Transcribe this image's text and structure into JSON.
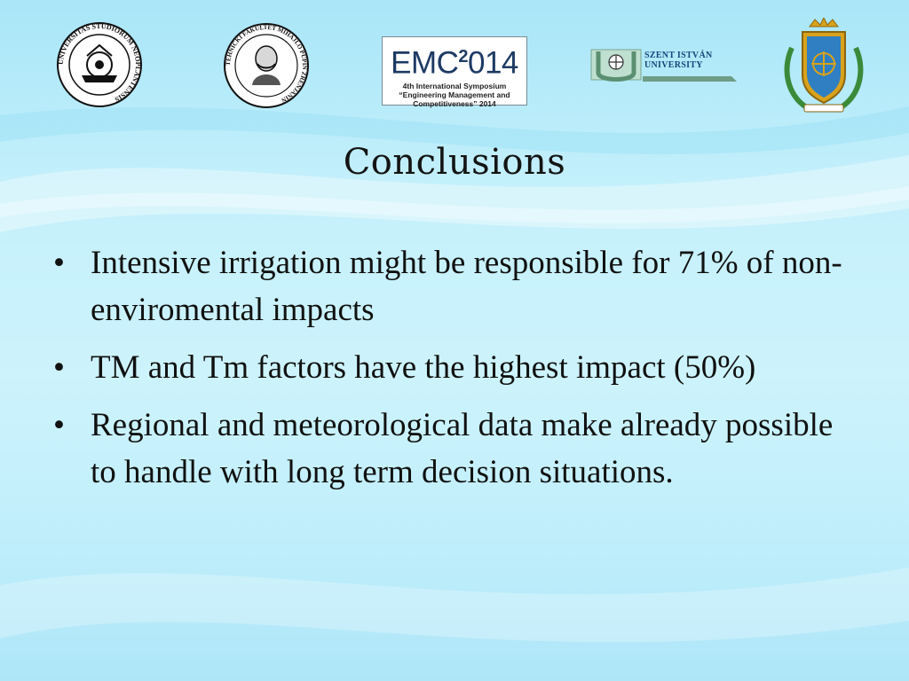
{
  "logos": {
    "logo1": {
      "name": "University of Novi Sad seal",
      "icon": "university-seal-icon",
      "text": "UNIVERSITAS STUDIORUM NEOPLANTENSIS"
    },
    "logo2": {
      "name": "Technical Faculty Mihajlo Pupin seal",
      "icon": "portrait-seal-icon",
      "text": "TEHNIČKI FAKULTET MIHAJLO PUPIN ZRENJANIN"
    },
    "emc": {
      "head": "EMC",
      "sup": "2",
      "year": "014",
      "line1": "4th International Symposium",
      "line2": "“Engineering Management and",
      "line3": "Competitiveness” 2014"
    },
    "szent_istvan": {
      "line1": "SZENT ISTVÁN",
      "line2": "UNIVERSITY"
    },
    "logo5": {
      "name": "coat of arms",
      "icon": "coat-of-arms-icon"
    }
  },
  "title": "Conclusions",
  "bullet_symbol": "•",
  "bullets": [
    "Intensive irrigation might be responsible for 71% of non-enviromental impacts",
    "TM and Tm factors have the highest impact (50%)",
    "Regional and meteorological data make already possible to handle with long term decision situations."
  ],
  "colors": {
    "background": "#c4f0fb",
    "text": "#111111",
    "emc_blue": "#1d3a64",
    "szent_blue": "#17457a"
  }
}
